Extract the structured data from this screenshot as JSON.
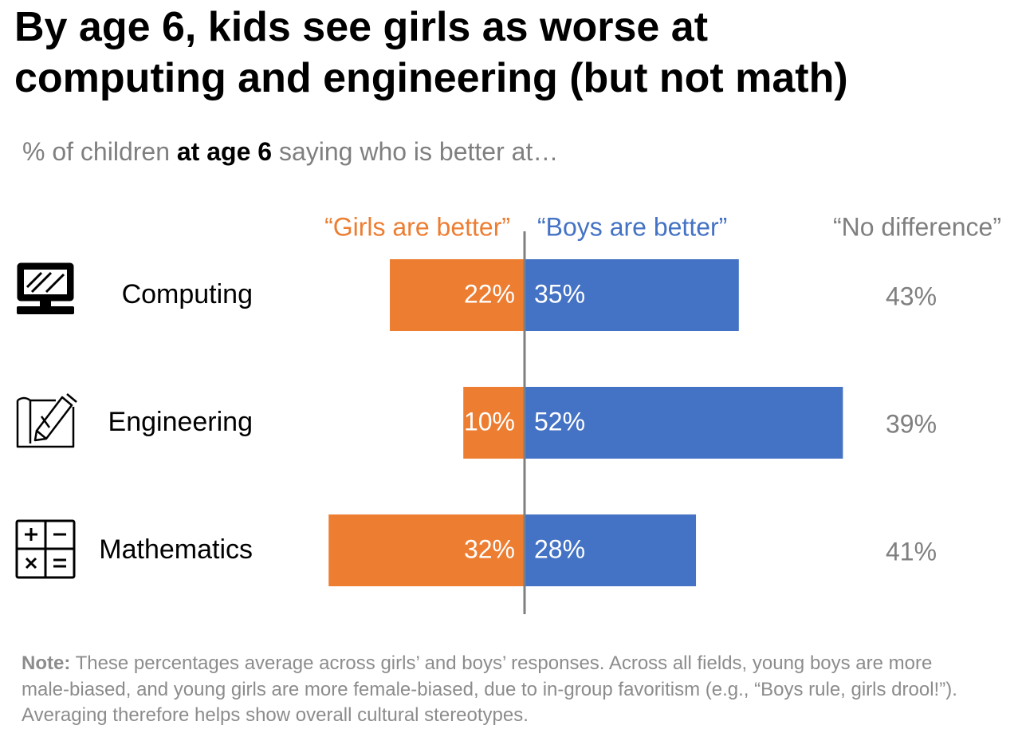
{
  "title_line1": "By age 6, kids see girls as worse at",
  "title_line2": "computing and engineering (but not math)",
  "subtitle": {
    "part1": "% of children ",
    "bold": "at age 6",
    "part2": " saying who is better at…"
  },
  "note": {
    "label": "Note:",
    "text": " These percentages average across girls’ and boys’ responses. Across all fields, young boys are more male-biased, and young girls are more female-biased, due to in-group favoritism (e.g., “Boys rule, girls drool!”). Averaging therefore helps show overall cultural stereotypes."
  },
  "colors": {
    "girls": "#ed7d31",
    "boys": "#4472c4",
    "no_difference": "#7f7f7f",
    "axis": "#7f7f7f"
  },
  "chart_data": {
    "type": "bar",
    "orientation": "horizontal-diverging",
    "categories": [
      "Computing",
      "Engineering",
      "Mathematics"
    ],
    "category_icons": [
      "computer-monitor-icon",
      "drafting-pencil-icon",
      "calculator-icon"
    ],
    "series": [
      {
        "name": "“Girls are better”",
        "values": [
          22,
          10,
          32
        ],
        "labels": [
          "22%",
          "10%",
          "32%"
        ]
      },
      {
        "name": "“Boys are better”",
        "values": [
          35,
          52,
          28
        ],
        "labels": [
          "35%",
          "52%",
          "28%"
        ]
      },
      {
        "name": "“No difference”",
        "values": [
          43,
          39,
          41
        ],
        "labels": [
          "43%",
          "39%",
          "41%"
        ]
      }
    ],
    "unit": "%"
  }
}
